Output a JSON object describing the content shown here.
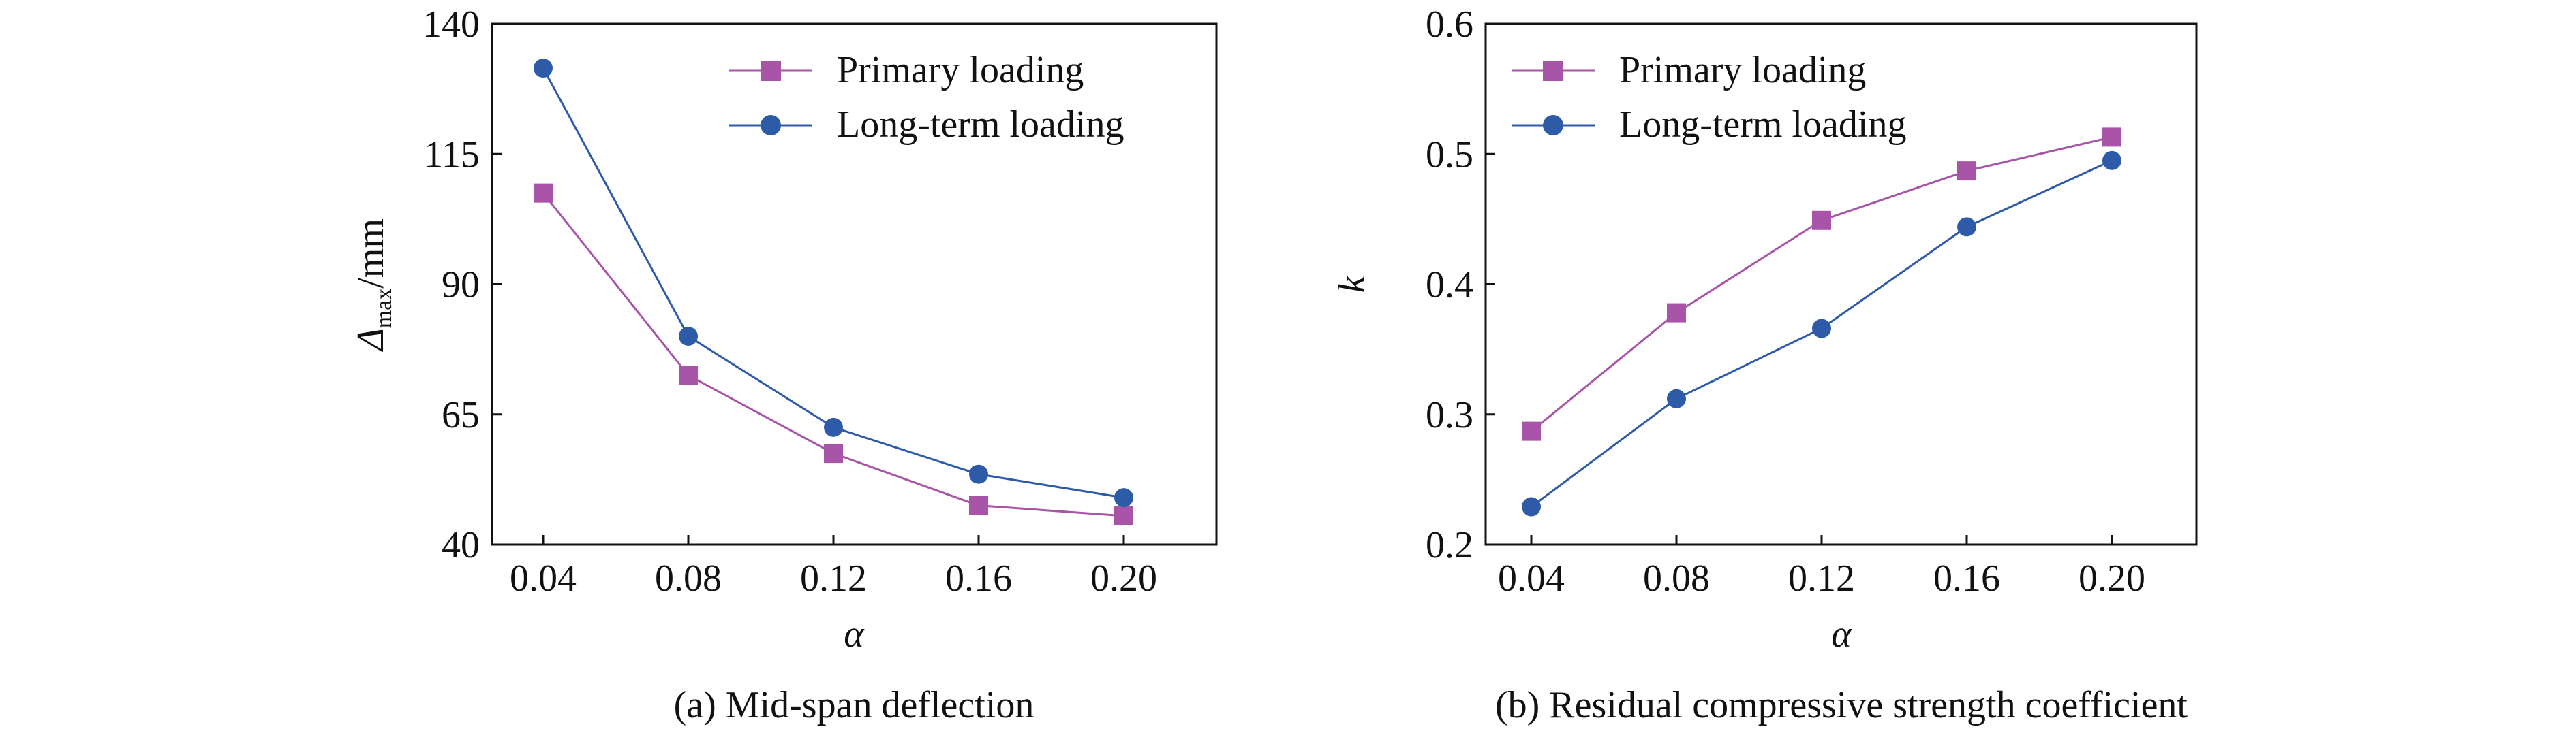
{
  "colors": {
    "primary": "#A855A8",
    "longterm": "#2E5BA8",
    "axis": "#111111"
  },
  "chart_data": [
    {
      "type": "line",
      "x": [
        0.04,
        0.08,
        0.12,
        0.16,
        0.2
      ],
      "x_tick_labels": [
        "0.04",
        "0.08",
        "0.12",
        "0.16",
        "0.20"
      ],
      "xlabel": "α",
      "ylabel_symbol": "Δ",
      "ylabel_subscript": "max",
      "ylabel_unit": "/mm",
      "ylim": [
        40,
        140
      ],
      "y_ticks": [
        40,
        65,
        90,
        115,
        140
      ],
      "y_tick_labels": [
        "40",
        "65",
        "90",
        "115",
        "140"
      ],
      "caption": "(a) Mid-span deflection",
      "legend_position": "top-right",
      "grid": false,
      "series": [
        {
          "name": "Primary loading",
          "marker": "square",
          "color": "#A855A8",
          "values": [
            107.5,
            72.5,
            57.5,
            47.5,
            45.5
          ]
        },
        {
          "name": "Long-term loading",
          "marker": "circle",
          "color": "#2E5BA8",
          "values": [
            131.5,
            80.0,
            62.5,
            53.5,
            49.0
          ]
        }
      ]
    },
    {
      "type": "line",
      "x": [
        0.04,
        0.08,
        0.12,
        0.16,
        0.2
      ],
      "x_tick_labels": [
        "0.04",
        "0.08",
        "0.12",
        "0.16",
        "0.20"
      ],
      "xlabel": "α",
      "ylabel": "k",
      "ylim": [
        0.2,
        0.6
      ],
      "y_ticks": [
        0.2,
        0.3,
        0.4,
        0.5,
        0.6
      ],
      "y_tick_labels": [
        "0.2",
        "0.3",
        "0.4",
        "0.5",
        "0.6"
      ],
      "caption": "(b) Residual compressive strength coefficient",
      "legend_position": "top-left",
      "grid": false,
      "series": [
        {
          "name": "Primary loading",
          "marker": "square",
          "color": "#A855A8",
          "values": [
            0.287,
            0.378,
            0.449,
            0.487,
            0.513
          ]
        },
        {
          "name": "Long-term loading",
          "marker": "circle",
          "color": "#2E5BA8",
          "values": [
            0.229,
            0.312,
            0.366,
            0.444,
            0.495
          ]
        }
      ]
    }
  ]
}
